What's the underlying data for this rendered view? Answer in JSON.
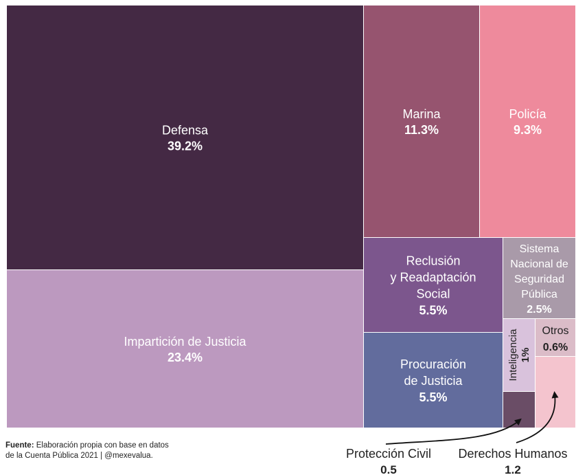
{
  "chart_data": {
    "type": "treemap",
    "items": [
      {
        "label": "Defensa",
        "value": 39.2,
        "display": "39.2%",
        "color": "#442944"
      },
      {
        "label": "Impartición de Justicia",
        "value": 23.4,
        "display": "23.4%",
        "color": "#bc99bf"
      },
      {
        "label": "Marina",
        "value": 11.3,
        "display": "11.3%",
        "color": "#96546f"
      },
      {
        "label": "Policía",
        "value": 9.3,
        "display": "9.3%",
        "color": "#ee8a9c"
      },
      {
        "label": "Reclusión y Readaptación Social",
        "lines": [
          "Reclusión",
          "y Readaptación",
          "Social"
        ],
        "value": 5.5,
        "display": "5.5%",
        "color": "#7c568d"
      },
      {
        "label": "Procuración de Justicia",
        "lines": [
          "Procuración",
          "de Justicia"
        ],
        "value": 5.5,
        "display": "5.5%",
        "color": "#626c9d"
      },
      {
        "label": "Sistema Nacional de Seguridad Pública",
        "lines": [
          "Sistema",
          "Nacional de",
          "Seguridad",
          "Pública"
        ],
        "value": 2.5,
        "display": "2.5%",
        "color": "#a99aa9"
      },
      {
        "label": "Inteligencia",
        "value": 1,
        "display": "1%",
        "color": "#d9c2dc"
      },
      {
        "label": "Otros",
        "value": 0.6,
        "display": "0.6%",
        "color": "#dbbcc8"
      },
      {
        "label": "Derechos Humanos",
        "value": 1.2,
        "display": "1.2",
        "color": "#f4c4ce"
      },
      {
        "label": "Protección Civil",
        "value": 0.5,
        "display": "0.5",
        "color": "#6a4d66"
      }
    ]
  },
  "source": {
    "prefix": "Fuente:",
    "line1": " Elaboración propia con base en datos",
    "line2": "de la Cuenta Pública 2021 | @mexevalua."
  }
}
